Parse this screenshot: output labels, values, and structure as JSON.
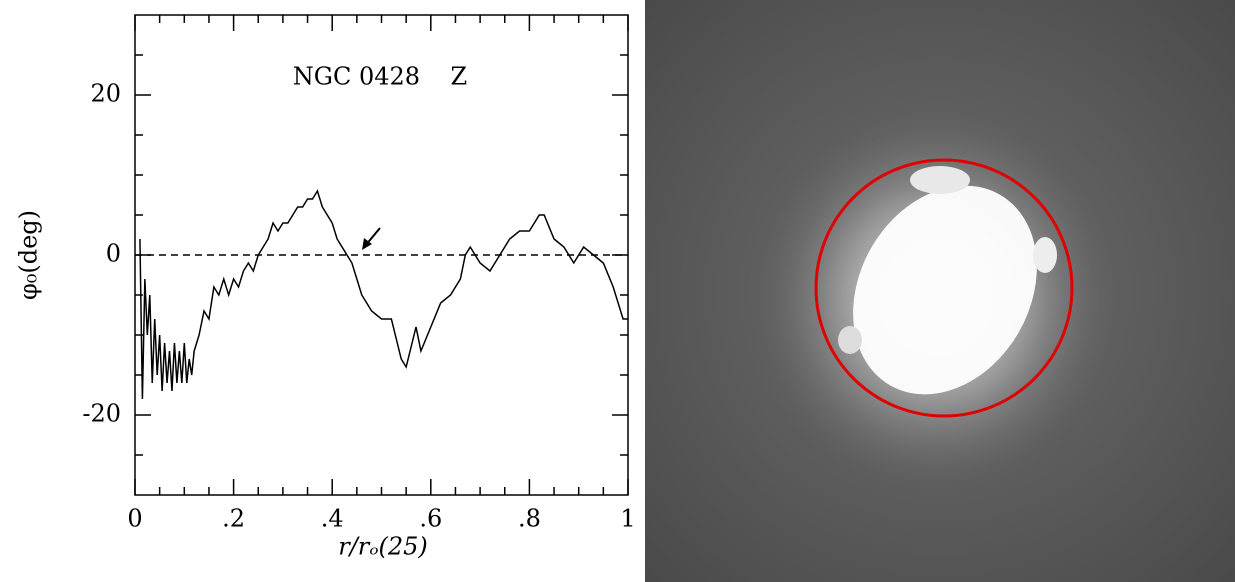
{
  "chart_data": {
    "type": "line",
    "annotation": "NGC 0428    Z",
    "x_label": "r/rₒ(25)",
    "y_label": "φ₀(deg)",
    "xlim": [
      0,
      1
    ],
    "ylim": [
      -30,
      30
    ],
    "xticks": [
      0,
      {
        "value": 0.2,
        "label": ".2"
      },
      {
        "value": 0.4,
        "label": ".4"
      },
      {
        "value": 0.6,
        "label": ".6"
      },
      {
        "value": 0.8,
        "label": ".8"
      },
      1
    ],
    "xminorticks": [
      0.05,
      0.1,
      0.15,
      0.25,
      0.3,
      0.35,
      0.45,
      0.5,
      0.55,
      0.65,
      0.7,
      0.75,
      0.85,
      0.9,
      0.95
    ],
    "yticks": [
      -20,
      0,
      20
    ],
    "yminorticks": [
      -25,
      -15,
      -10,
      -5,
      5,
      10,
      15,
      25
    ],
    "hline": 0,
    "x": [
      0.01,
      0.015,
      0.02,
      0.025,
      0.03,
      0.035,
      0.04,
      0.045,
      0.05,
      0.055,
      0.06,
      0.065,
      0.07,
      0.075,
      0.08,
      0.085,
      0.09,
      0.095,
      0.1,
      0.105,
      0.11,
      0.115,
      0.12,
      0.13,
      0.14,
      0.15,
      0.16,
      0.17,
      0.18,
      0.19,
      0.2,
      0.21,
      0.22,
      0.23,
      0.24,
      0.25,
      0.26,
      0.27,
      0.28,
      0.29,
      0.3,
      0.31,
      0.32,
      0.33,
      0.34,
      0.35,
      0.36,
      0.37,
      0.38,
      0.39,
      0.4,
      0.41,
      0.42,
      0.44,
      0.46,
      0.48,
      0.5,
      0.52,
      0.54,
      0.55,
      0.57,
      0.58,
      0.6,
      0.62,
      0.64,
      0.66,
      0.67,
      0.68,
      0.7,
      0.72,
      0.74,
      0.76,
      0.78,
      0.8,
      0.82,
      0.83,
      0.85,
      0.87,
      0.89,
      0.91,
      0.93,
      0.95,
      0.97,
      0.99,
      1.0
    ],
    "series": [
      {
        "name": "phi0",
        "color": "#000000",
        "values": [
          2,
          -18,
          -3,
          -10,
          -5,
          -16,
          -8,
          -15,
          -10,
          -17,
          -11,
          -16,
          -12,
          -17,
          -11,
          -16,
          -12,
          -16,
          -11,
          -16,
          -13,
          -15,
          -12,
          -10,
          -7,
          -8,
          -4,
          -5,
          -3,
          -5,
          -3,
          -4,
          -2,
          -1,
          -2,
          0,
          1,
          2,
          4,
          3,
          4,
          4,
          5,
          6,
          6,
          7,
          7,
          8,
          6,
          5,
          4,
          2,
          1,
          -1,
          -5,
          -7,
          -8,
          -8,
          -13,
          -14,
          -9,
          -12,
          -9,
          -6,
          -5,
          -3,
          0,
          1,
          -1,
          -2,
          0,
          2,
          3,
          3,
          5,
          5,
          2,
          1,
          -1,
          1,
          0,
          -1,
          -4,
          -8,
          -8
        ]
      }
    ]
  }
}
